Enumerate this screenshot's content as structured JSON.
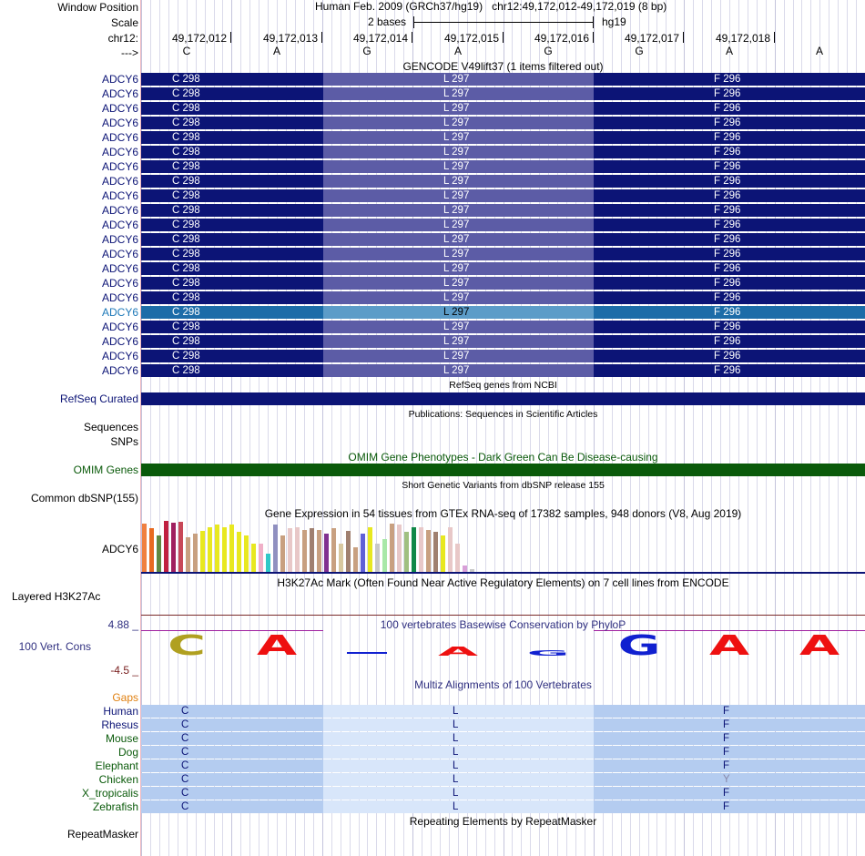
{
  "header": {
    "window_position_label": "Window Position",
    "scale_label": "Scale",
    "chrom_label": "chr12:",
    "arrow_label": "--->",
    "window_text": "Human Feb. 2009 (GRCh37/hg19)   chr12:49,172,012-49,172,019 (8 bp)",
    "scale_text": "2 bases",
    "assembly": "hg19",
    "coordinates": [
      "49,172,012",
      "49,172,013",
      "49,172,014",
      "49,172,015",
      "49,172,016",
      "49,172,017",
      "49,172,018"
    ],
    "bases": [
      "C",
      "A",
      "G",
      "A",
      "G",
      "G",
      "A",
      "A"
    ]
  },
  "gencode": {
    "title": "GENCODE V49lift37 (1 items filtered out)",
    "gene_label": "ADCY6",
    "row_count": 21,
    "highlight_row": 16,
    "codons": [
      "C 298",
      "L 297",
      "F 296"
    ],
    "colors": {
      "dark": "#0c1476",
      "mid": "#5c5ca6",
      "hl_dark": "#1c6ca8",
      "hl_mid": "#5c9cc8",
      "hl_label": "#1c78b8",
      "label": "#0c1476"
    }
  },
  "refseq": {
    "title": "RefSeq genes from NCBI",
    "label": "RefSeq Curated",
    "color": "#0c1476"
  },
  "publications": {
    "title": "Publications: Sequences in Scientific Articles",
    "label_sequences": "Sequences",
    "label_snps": "SNPs"
  },
  "omim": {
    "title": "OMIM Gene Phenotypes - Dark Green Can Be Disease-causing",
    "label": "OMIM Genes",
    "color": "#0a5a0a"
  },
  "dbsnp": {
    "title": "Short Genetic Variants from dbSNP release 155",
    "label": "Common dbSNP(155)"
  },
  "gtex": {
    "title": "Gene Expression in 54 tissues from GTEx RNA-seq of 17382 samples, 948 donors (V8, Aug 2019)",
    "label": "ADCY6",
    "bar_heights": [
      0.95,
      0.85,
      0.72,
      1.0,
      0.96,
      0.98,
      0.68,
      0.75,
      0.8,
      0.87,
      0.92,
      0.88,
      0.92,
      0.78,
      0.72,
      0.55,
      0.55,
      0.35,
      0.92,
      0.72,
      0.85,
      0.88,
      0.82,
      0.85,
      0.83,
      0.75,
      0.85,
      0.55,
      0.8,
      0.48,
      0.75,
      0.88,
      0.55,
      0.65,
      0.95,
      0.92,
      0.78,
      0.88,
      0.88,
      0.82,
      0.78,
      0.72,
      0.88,
      0.55,
      0.12,
      0.05
    ],
    "bar_colors": [
      "#f08040",
      "#e86a20",
      "#608840",
      "#c02040",
      "#a02060",
      "#c84858",
      "#c8a080",
      "#c8a080",
      "#e8e820",
      "#e8e820",
      "#e8e820",
      "#e8e820",
      "#e8e820",
      "#e8e820",
      "#e8e820",
      "#e8e820",
      "#f0b0c8",
      "#30c8c8",
      "#9090c0",
      "#c8a080",
      "#e8c8c8",
      "#e8c8c8",
      "#c8a080",
      "#a08070",
      "#c8a080",
      "#803090",
      "#c8a080",
      "#d8c8a0",
      "#a08070",
      "#c8a080",
      "#6060d8",
      "#e8e820",
      "#c8c8c8",
      "#a8e8a8",
      "#c8a080",
      "#e8c8c8",
      "#a0c080",
      "#108848",
      "#e8c8c8",
      "#c8a080",
      "#a08070",
      "#e8e820",
      "#e8c8c8",
      "#e8c8c8",
      "#d8a0d8",
      "#c8c8c8"
    ]
  },
  "h3k27ac": {
    "title": "H3K27Ac Mark (Often Found Near Active Regulatory Elements) on 7 cell lines from ENCODE",
    "label": "Layered H3K27Ac"
  },
  "conservation": {
    "title": "100 vertebrates Basewise Conservation by PhyloP",
    "label": "100 Vert. Cons",
    "ymax": "4.88 _",
    "ymin": "-4.5 _",
    "logo_bases": [
      "C",
      "A",
      "-",
      "A",
      "G",
      "G",
      "A",
      "A"
    ],
    "logo_heights": [
      1.0,
      1.0,
      0.05,
      0.45,
      0.25,
      1.0,
      1.0,
      1.0
    ],
    "logo_colors": [
      "#b0a020",
      "#ee1010",
      "#1020d0",
      "#ee1010",
      "#1020d0",
      "#1020d0",
      "#ee1010",
      "#ee1010"
    ]
  },
  "multiz": {
    "title": "Multiz Alignments of 100 Vertebrates",
    "gaps_label": "Gaps",
    "species": [
      {
        "name": "Human",
        "c": "C",
        "l": "L",
        "f": "F",
        "color": "#0c1476"
      },
      {
        "name": "Rhesus",
        "c": "C",
        "l": "L",
        "f": "F",
        "color": "#0c1476"
      },
      {
        "name": "Mouse",
        "c": "C",
        "l": "L",
        "f": "F",
        "color": "#0a5a0a"
      },
      {
        "name": "Dog",
        "c": "C",
        "l": "L",
        "f": "F",
        "color": "#0a5a0a"
      },
      {
        "name": "Elephant",
        "c": "C",
        "l": "L",
        "f": "F",
        "color": "#0a5a0a"
      },
      {
        "name": "Chicken",
        "c": "C",
        "l": "L",
        "f": "Y",
        "color": "#0a5a0a"
      },
      {
        "name": "X_tropicalis",
        "c": "C",
        "l": "L",
        "f": "F",
        "color": "#0a5a0a"
      },
      {
        "name": "Zebrafish",
        "c": "C",
        "l": "L",
        "f": "F",
        "color": "#0a5a0a"
      }
    ]
  },
  "repeatmasker": {
    "title": "Repeating Elements by RepeatMasker",
    "label": "RepeatMasker"
  }
}
